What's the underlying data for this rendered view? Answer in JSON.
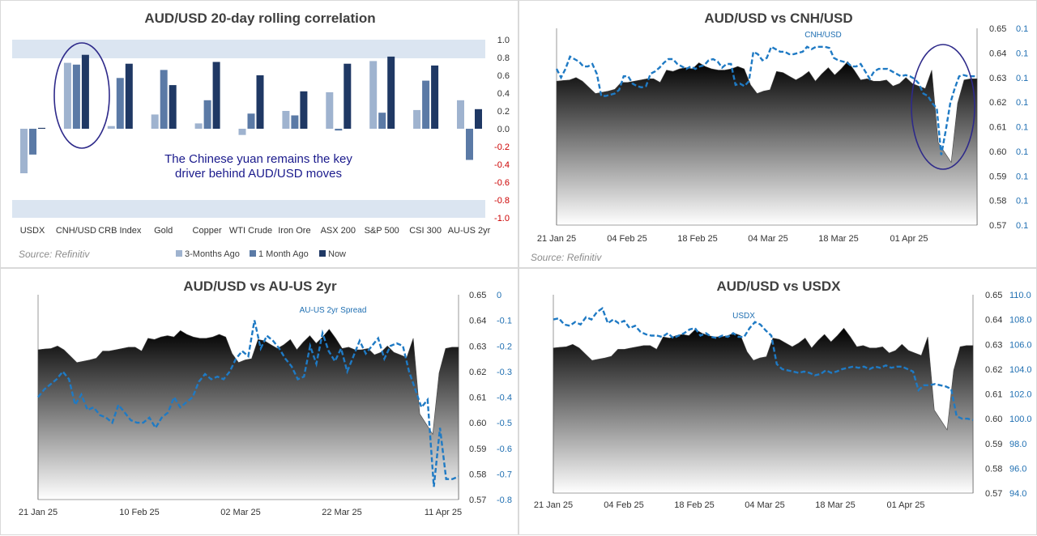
{
  "colors": {
    "three_months": "#9fb3cf",
    "one_month": "#5b7aa6",
    "now": "#1f3864",
    "dashed": "#1f7ac4",
    "band": "#dbe5f1",
    "ellipse": "#2e2a8a"
  },
  "chart_data": [
    {
      "type": "bar",
      "title": "AUD/USD 20-day rolling correlation",
      "categories": [
        "USDX",
        "CNH/USD",
        "CRB Index",
        "Gold",
        "Copper",
        "WTI Crude",
        "Iron Ore",
        "ASX 200",
        "S&P 500",
        "CSI 300",
        "AU-US 2yr"
      ],
      "series": [
        {
          "name": "3-Months Ago",
          "values": [
            -0.5,
            0.74,
            0.03,
            0.16,
            0.06,
            -0.07,
            0.2,
            0.41,
            0.76,
            0.21,
            0.32
          ]
        },
        {
          "name": "1 Month Ago",
          "values": [
            -0.29,
            0.72,
            0.57,
            0.66,
            0.32,
            0.17,
            0.15,
            -0.02,
            0.18,
            0.54,
            -0.35
          ]
        },
        {
          "name": "Now",
          "values": [
            0.01,
            0.83,
            0.73,
            0.49,
            0.75,
            0.6,
            0.42,
            0.73,
            0.81,
            0.71,
            0.22
          ]
        }
      ],
      "ylim": [
        -1.0,
        1.0
      ],
      "yticks": [
        "1.0",
        "0.8",
        "0.6",
        "0.4",
        "0.2",
        "0.0",
        "-0.2",
        "-0.4",
        "-0.6",
        "-0.8",
        "-1.0"
      ],
      "annotation": [
        "The Chinese yuan remains the key",
        "driver behind  AUD/USD moves"
      ],
      "legend": [
        "3-Months Ago",
        "1 Month Ago",
        "Now"
      ],
      "source": "Source: Refinitiv"
    },
    {
      "type": "area",
      "title": "AUD/USD vs CNH/USD",
      "x_labels": [
        "21 Jan 25",
        "04 Feb 25",
        "18 Feb 25",
        "04 Mar 25",
        "18 Mar 25",
        "01 Apr 25"
      ],
      "ylim_left": [
        0.57,
        0.65
      ],
      "yticks_left": [
        "0.65",
        "0.64",
        "0.63",
        "0.62",
        "0.61",
        "0.60",
        "0.59",
        "0.58",
        "0.57"
      ],
      "yticks_right": [
        "0.1",
        "0.1",
        "0.1",
        "0.1",
        "0.1",
        "0.1",
        "0.1",
        "0.1",
        "0.1"
      ],
      "series_label": "CNH/USD",
      "source": "Source: Refinitiv",
      "area_values": [
        0.6285,
        0.6288,
        0.629,
        0.63,
        0.6285,
        0.626,
        0.6235,
        0.624,
        0.6245,
        0.6252,
        0.628,
        0.628,
        0.6285,
        0.629,
        0.6295,
        0.6295,
        0.628,
        0.633,
        0.6325,
        0.6335,
        0.634,
        0.6335,
        0.636,
        0.6345,
        0.6335,
        0.633,
        0.633,
        0.6335,
        0.6345,
        0.6335,
        0.627,
        0.6235,
        0.6245,
        0.625,
        0.6325,
        0.632,
        0.6305,
        0.629,
        0.6305,
        0.6325,
        0.6285,
        0.6315,
        0.634,
        0.631,
        0.6335,
        0.6365,
        0.633,
        0.629,
        0.6295,
        0.6285,
        0.6285,
        0.629,
        0.6265,
        0.6275,
        0.63,
        0.6275,
        0.6265,
        0.6255,
        0.633,
        0.6035,
        0.5995,
        0.5955,
        0.6195,
        0.629,
        0.6295,
        0.6295
      ],
      "line_values": [
        0.6335,
        0.63,
        0.6335,
        0.6385,
        0.6375,
        0.6365,
        0.6345,
        0.6345,
        0.6355,
        0.6315,
        0.6225,
        0.6225,
        0.623,
        0.6235,
        0.625,
        0.6305,
        0.6305,
        0.6275,
        0.6265,
        0.626,
        0.6265,
        0.6315,
        0.6325,
        0.634,
        0.636,
        0.6375,
        0.6375,
        0.6355,
        0.6345,
        0.6335,
        0.6345,
        0.6335,
        0.6345,
        0.635,
        0.637,
        0.6375,
        0.6365,
        0.634,
        0.6355,
        0.6355,
        0.627,
        0.6275,
        0.6265,
        0.6285,
        0.6405,
        0.6395,
        0.637,
        0.638,
        0.6425,
        0.6415,
        0.6405,
        0.6405,
        0.6395,
        0.6395,
        0.64,
        0.6405,
        0.6425,
        0.6415,
        0.6425,
        0.6425,
        0.6425,
        0.642,
        0.638,
        0.637,
        0.6365,
        0.636,
        0.6345,
        0.6345,
        0.6355,
        0.6325,
        0.6295,
        0.6325,
        0.6335,
        0.6335,
        0.6335,
        0.6325,
        0.6315,
        0.6305,
        0.631,
        0.6305,
        0.6295,
        0.6275,
        0.6235,
        0.6225,
        0.6195,
        0.6175,
        0.5985,
        0.6085,
        0.6195,
        0.6255,
        0.6305,
        0.631,
        0.6305,
        0.6305,
        0.6305
      ]
    },
    {
      "type": "area",
      "title": "AUD/USD vs AU-US 2yr",
      "x_labels": [
        "21 Jan 25",
        "10 Feb 25",
        "02 Mar 25",
        "22 Mar 25",
        "11 Apr 25"
      ],
      "ylim_left": [
        0.57,
        0.65
      ],
      "yticks_left": [
        "0.65",
        "0.64",
        "0.63",
        "0.62",
        "0.61",
        "0.60",
        "0.59",
        "0.58",
        "0.57"
      ],
      "ylim_right": [
        -0.8,
        0.0
      ],
      "yticks_right": [
        "0",
        "-0.1",
        "-0.2",
        "-0.3",
        "-0.4",
        "-0.5",
        "-0.6",
        "-0.7",
        "-0.8"
      ],
      "series_label": "AU-US 2yr Spread",
      "area_values": [
        0.6285,
        0.6288,
        0.629,
        0.63,
        0.6285,
        0.626,
        0.6235,
        0.624,
        0.6245,
        0.6252,
        0.628,
        0.628,
        0.6285,
        0.629,
        0.6295,
        0.6295,
        0.628,
        0.633,
        0.6325,
        0.6335,
        0.634,
        0.6335,
        0.636,
        0.6345,
        0.6335,
        0.633,
        0.633,
        0.6335,
        0.6345,
        0.6335,
        0.627,
        0.6235,
        0.6245,
        0.625,
        0.6325,
        0.632,
        0.6305,
        0.629,
        0.6305,
        0.6325,
        0.6285,
        0.6315,
        0.634,
        0.631,
        0.6335,
        0.6365,
        0.633,
        0.629,
        0.6295,
        0.6285,
        0.6285,
        0.629,
        0.6265,
        0.6275,
        0.63,
        0.6275,
        0.6265,
        0.6255,
        0.633,
        0.6035,
        0.5995,
        0.5955,
        0.6195,
        0.629,
        0.6295,
        0.6295
      ],
      "line_values": [
        -0.4,
        -0.37,
        -0.35,
        -0.33,
        -0.3,
        -0.33,
        -0.43,
        -0.39,
        -0.45,
        -0.44,
        -0.47,
        -0.48,
        -0.5,
        -0.43,
        -0.46,
        -0.49,
        -0.5,
        -0.5,
        -0.48,
        -0.52,
        -0.48,
        -0.46,
        -0.4,
        -0.44,
        -0.42,
        -0.4,
        -0.34,
        -0.31,
        -0.33,
        -0.32,
        -0.33,
        -0.3,
        -0.25,
        -0.22,
        -0.24,
        -0.1,
        -0.21,
        -0.16,
        -0.18,
        -0.21,
        -0.25,
        -0.28,
        -0.33,
        -0.32,
        -0.2,
        -0.27,
        -0.15,
        -0.22,
        -0.26,
        -0.21,
        -0.3,
        -0.24,
        -0.18,
        -0.23,
        -0.2,
        -0.17,
        -0.25,
        -0.2,
        -0.19,
        -0.2,
        -0.3,
        -0.37,
        -0.44,
        -0.41,
        -0.75,
        -0.52,
        -0.72,
        -0.72,
        -0.71
      ]
    },
    {
      "type": "area",
      "title": "AUD/USD vs USDX",
      "x_labels": [
        "21 Jan 25",
        "04 Feb 25",
        "18 Feb 25",
        "04 Mar 25",
        "18 Mar 25",
        "01 Apr 25"
      ],
      "ylim_left": [
        0.57,
        0.65
      ],
      "yticks_left": [
        "0.65",
        "0.64",
        "0.63",
        "0.62",
        "0.61",
        "0.60",
        "0.59",
        "0.58",
        "0.57"
      ],
      "ylim_right": [
        94.0,
        110.0
      ],
      "yticks_right": [
        "110.0",
        "108.0",
        "106.0",
        "104.0",
        "102.0",
        "100.0",
        "98.0",
        "96.0",
        "94.0"
      ],
      "series_label": "USDX",
      "area_values": [
        0.6285,
        0.6288,
        0.629,
        0.63,
        0.6285,
        0.626,
        0.6235,
        0.624,
        0.6245,
        0.6252,
        0.628,
        0.628,
        0.6285,
        0.629,
        0.6295,
        0.6295,
        0.628,
        0.633,
        0.6325,
        0.6335,
        0.634,
        0.6335,
        0.636,
        0.6345,
        0.6335,
        0.633,
        0.633,
        0.6335,
        0.6345,
        0.6335,
        0.627,
        0.6235,
        0.6245,
        0.625,
        0.6325,
        0.632,
        0.6305,
        0.629,
        0.6305,
        0.6325,
        0.6285,
        0.6315,
        0.634,
        0.631,
        0.6335,
        0.6365,
        0.633,
        0.629,
        0.6295,
        0.6285,
        0.6285,
        0.629,
        0.6265,
        0.6275,
        0.63,
        0.6275,
        0.6265,
        0.6255,
        0.633,
        0.6035,
        0.5995,
        0.5955,
        0.6195,
        0.629,
        0.6295,
        0.6295
      ],
      "line_values": [
        108.0,
        108.1,
        107.6,
        107.5,
        107.8,
        107.6,
        108.2,
        108.0,
        108.6,
        108.9,
        107.7,
        108.0,
        107.7,
        107.9,
        107.3,
        107.5,
        107.0,
        106.8,
        106.7,
        106.7,
        106.6,
        106.9,
        106.5,
        106.7,
        106.9,
        107.2,
        107.3,
        106.7,
        106.9,
        106.6,
        106.5,
        106.7,
        106.6,
        106.9,
        106.6,
        106.6,
        107.3,
        107.8,
        107.6,
        107.1,
        106.7,
        104.4,
        104.0,
        103.9,
        103.8,
        103.7,
        103.8,
        103.7,
        103.5,
        103.6,
        103.9,
        103.7,
        103.8,
        104.0,
        104.1,
        104.2,
        104.1,
        104.2,
        104.0,
        104.2,
        104.1,
        104.3,
        104.1,
        104.2,
        104.2,
        104.0,
        103.8,
        102.3,
        102.7,
        102.7,
        102.8,
        102.7,
        102.6,
        102.4,
        100.2,
        100.0,
        100.0,
        99.9
      ]
    }
  ]
}
